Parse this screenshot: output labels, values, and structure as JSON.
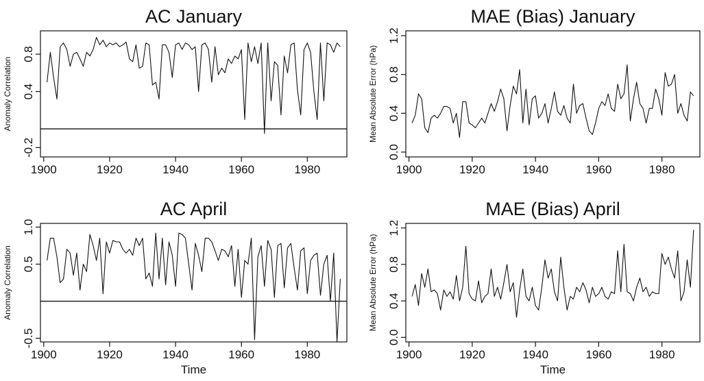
{
  "chart_data": [
    {
      "type": "line",
      "title": "AC January",
      "xlabel": "",
      "ylabel": "Anomaly Correlation",
      "xlim": [
        1899,
        1992
      ],
      "ylim": [
        -0.3,
        1.05
      ],
      "xticks": [
        1900,
        1920,
        1940,
        1960,
        1980
      ],
      "yticks": [
        -0.2,
        0.4,
        0.8
      ],
      "hline": 0.0,
      "series": [
        {
          "x": [
            1901,
            1902,
            1903,
            1904,
            1905,
            1906,
            1907,
            1908,
            1909,
            1910,
            1911,
            1912,
            1913,
            1914,
            1915,
            1916,
            1917,
            1918,
            1919,
            1920,
            1921,
            1922,
            1923,
            1924,
            1925,
            1926,
            1927,
            1928,
            1929,
            1930,
            1931,
            1932,
            1933,
            1934,
            1935,
            1936,
            1937,
            1938,
            1939,
            1940,
            1941,
            1942,
            1943,
            1944,
            1945,
            1946,
            1947,
            1948,
            1949,
            1950,
            1951,
            1952,
            1953,
            1954,
            1955,
            1956,
            1957,
            1958,
            1959,
            1960,
            1961,
            1962,
            1963,
            1964,
            1965,
            1966,
            1967,
            1968,
            1969,
            1970,
            1971,
            1972,
            1973,
            1974,
            1975,
            1976,
            1977,
            1978,
            1979,
            1980,
            1981,
            1982,
            1983,
            1984,
            1985,
            1986,
            1987,
            1988,
            1989,
            1990
          ],
          "values": [
            0.5,
            0.82,
            0.55,
            0.32,
            0.88,
            0.92,
            0.85,
            0.67,
            0.8,
            0.82,
            0.75,
            0.67,
            0.82,
            0.78,
            0.85,
            0.98,
            0.9,
            0.95,
            0.88,
            0.92,
            0.9,
            0.92,
            0.88,
            0.9,
            0.93,
            0.75,
            0.72,
            0.9,
            0.65,
            0.67,
            0.92,
            0.9,
            0.47,
            0.5,
            0.32,
            0.9,
            0.9,
            0.82,
            0.55,
            0.9,
            0.92,
            0.85,
            0.92,
            0.9,
            0.85,
            0.88,
            0.4,
            0.9,
            0.92,
            0.85,
            0.5,
            0.88,
            0.58,
            0.65,
            0.6,
            0.75,
            0.7,
            0.78,
            0.75,
            0.85,
            0.1,
            0.92,
            0.72,
            0.88,
            0.7,
            0.92,
            -0.05,
            0.92,
            0.3,
            0.72,
            0.68,
            0.15,
            0.78,
            0.6,
            0.9,
            0.92,
            0.42,
            0.15,
            0.85,
            0.92,
            0.82,
            0.4,
            0.1,
            0.92,
            0.3,
            0.92,
            0.9,
            0.82,
            0.92,
            0.88
          ]
        }
      ]
    },
    {
      "type": "line",
      "title": "MAE (Bias) January",
      "xlabel": "",
      "ylabel": "Mean Absolute Error (hPa)",
      "xlim": [
        1899,
        1992
      ],
      "ylim": [
        -0.05,
        1.25
      ],
      "xticks": [
        1900,
        1920,
        1940,
        1960,
        1980
      ],
      "yticks": [
        0.0,
        0.4,
        0.8,
        1.2
      ],
      "series": [
        {
          "x": [
            1901,
            1902,
            1903,
            1904,
            1905,
            1906,
            1907,
            1908,
            1909,
            1910,
            1911,
            1912,
            1913,
            1914,
            1915,
            1916,
            1917,
            1918,
            1919,
            1920,
            1921,
            1922,
            1923,
            1924,
            1925,
            1926,
            1927,
            1928,
            1929,
            1930,
            1931,
            1932,
            1933,
            1934,
            1935,
            1936,
            1937,
            1938,
            1939,
            1940,
            1941,
            1942,
            1943,
            1944,
            1945,
            1946,
            1947,
            1948,
            1949,
            1950,
            1951,
            1952,
            1953,
            1954,
            1955,
            1956,
            1957,
            1958,
            1959,
            1960,
            1961,
            1962,
            1963,
            1964,
            1965,
            1966,
            1967,
            1968,
            1969,
            1970,
            1971,
            1972,
            1973,
            1974,
            1975,
            1976,
            1977,
            1978,
            1979,
            1980,
            1981,
            1982,
            1983,
            1984,
            1985,
            1986,
            1987,
            1988,
            1989,
            1990
          ],
          "values": [
            0.3,
            0.38,
            0.6,
            0.55,
            0.25,
            0.2,
            0.35,
            0.38,
            0.35,
            0.4,
            0.47,
            0.47,
            0.45,
            0.3,
            0.4,
            0.15,
            0.52,
            0.52,
            0.3,
            0.28,
            0.25,
            0.3,
            0.35,
            0.3,
            0.4,
            0.5,
            0.42,
            0.52,
            0.65,
            0.55,
            0.22,
            0.48,
            0.68,
            0.6,
            0.85,
            0.3,
            0.65,
            0.28,
            0.55,
            0.58,
            0.35,
            0.4,
            0.5,
            0.3,
            0.45,
            0.62,
            0.42,
            0.38,
            0.48,
            0.35,
            0.3,
            0.7,
            0.4,
            0.48,
            0.5,
            0.35,
            0.22,
            0.18,
            0.3,
            0.45,
            0.52,
            0.48,
            0.6,
            0.45,
            0.42,
            0.7,
            0.55,
            0.6,
            0.9,
            0.32,
            0.55,
            0.72,
            0.5,
            0.45,
            0.3,
            0.45,
            0.45,
            0.65,
            0.55,
            0.38,
            0.82,
            0.68,
            0.7,
            0.8,
            0.4,
            0.5,
            0.38,
            0.32,
            0.62,
            0.58
          ]
        }
      ]
    },
    {
      "type": "line",
      "title": "AC April",
      "xlabel": "Time",
      "ylabel": "Anomaly Correlation",
      "xlim": [
        1899,
        1992
      ],
      "ylim": [
        -0.55,
        1.05
      ],
      "xticks": [
        1900,
        1920,
        1940,
        1960,
        1980
      ],
      "yticks": [
        -0.5,
        0.5,
        1.0
      ],
      "hline": 0.0,
      "series": [
        {
          "x": [
            1901,
            1902,
            1903,
            1904,
            1905,
            1906,
            1907,
            1908,
            1909,
            1910,
            1911,
            1912,
            1913,
            1914,
            1915,
            1916,
            1917,
            1918,
            1919,
            1920,
            1921,
            1922,
            1923,
            1924,
            1925,
            1926,
            1927,
            1928,
            1929,
            1930,
            1931,
            1932,
            1933,
            1934,
            1935,
            1936,
            1937,
            1938,
            1939,
            1940,
            1941,
            1942,
            1943,
            1944,
            1945,
            1946,
            1947,
            1948,
            1949,
            1950,
            1951,
            1952,
            1953,
            1954,
            1955,
            1956,
            1957,
            1958,
            1959,
            1960,
            1961,
            1962,
            1963,
            1964,
            1965,
            1966,
            1967,
            1968,
            1969,
            1970,
            1971,
            1972,
            1973,
            1974,
            1975,
            1976,
            1977,
            1978,
            1979,
            1980,
            1981,
            1982,
            1983,
            1984,
            1985,
            1986,
            1987,
            1988,
            1989,
            1990
          ],
          "values": [
            0.55,
            0.85,
            0.85,
            0.6,
            0.25,
            0.3,
            0.7,
            0.65,
            0.35,
            0.65,
            0.15,
            0.5,
            0.4,
            0.9,
            0.75,
            0.55,
            0.85,
            0.1,
            0.8,
            0.65,
            0.82,
            0.8,
            0.8,
            0.7,
            0.65,
            0.7,
            0.62,
            0.85,
            0.75,
            0.85,
            0.3,
            0.38,
            0.2,
            0.92,
            0.3,
            0.85,
            0.22,
            0.8,
            0.62,
            0.2,
            0.92,
            0.9,
            0.85,
            0.5,
            0.15,
            0.78,
            0.62,
            0.4,
            0.85,
            0.85,
            0.8,
            0.68,
            0.55,
            0.7,
            0.68,
            0.6,
            0.75,
            0.2,
            0.7,
            0.05,
            0.55,
            0.5,
            0.85,
            -0.52,
            0.6,
            0.75,
            0.2,
            0.82,
            0.7,
            0.05,
            0.75,
            0.78,
            0.18,
            0.72,
            0.78,
            0.45,
            0.15,
            0.68,
            0.72,
            0.1,
            0.55,
            0.62,
            0.65,
            0.08,
            0.5,
            0.62,
            0.0,
            0.65,
            -0.55,
            0.3
          ]
        }
      ]
    },
    {
      "type": "line",
      "title": "MAE (Bias) April",
      "xlabel": "Time",
      "ylabel": "Mean Absolute Error (hPa)",
      "xlim": [
        1899,
        1992
      ],
      "ylim": [
        -0.05,
        1.25
      ],
      "xticks": [
        1900,
        1920,
        1940,
        1960,
        1980
      ],
      "yticks": [
        0.0,
        0.4,
        0.8,
        1.2
      ],
      "series": [
        {
          "x": [
            1901,
            1902,
            1903,
            1904,
            1905,
            1906,
            1907,
            1908,
            1909,
            1910,
            1911,
            1912,
            1913,
            1914,
            1915,
            1916,
            1917,
            1918,
            1919,
            1920,
            1921,
            1922,
            1923,
            1924,
            1925,
            1926,
            1927,
            1928,
            1929,
            1930,
            1931,
            1932,
            1933,
            1934,
            1935,
            1936,
            1937,
            1938,
            1939,
            1940,
            1941,
            1942,
            1943,
            1944,
            1945,
            1946,
            1947,
            1948,
            1949,
            1950,
            1951,
            1952,
            1953,
            1954,
            1955,
            1956,
            1957,
            1958,
            1959,
            1960,
            1961,
            1962,
            1963,
            1964,
            1965,
            1966,
            1967,
            1968,
            1969,
            1970,
            1971,
            1972,
            1973,
            1974,
            1975,
            1976,
            1977,
            1978,
            1979,
            1980,
            1981,
            1982,
            1983,
            1984,
            1985,
            1986,
            1987,
            1988,
            1989,
            1990
          ],
          "values": [
            0.45,
            0.58,
            0.35,
            0.7,
            0.55,
            0.75,
            0.5,
            0.52,
            0.48,
            0.3,
            0.52,
            0.45,
            0.5,
            0.42,
            0.68,
            0.4,
            0.55,
            1.0,
            0.48,
            0.42,
            0.4,
            0.62,
            0.38,
            0.45,
            0.48,
            0.75,
            0.45,
            0.55,
            0.42,
            0.6,
            0.8,
            0.5,
            0.6,
            0.22,
            0.52,
            0.75,
            0.45,
            0.4,
            0.55,
            0.35,
            0.3,
            0.55,
            0.85,
            0.65,
            0.75,
            0.5,
            0.4,
            0.88,
            0.55,
            0.3,
            0.45,
            0.42,
            0.55,
            0.5,
            0.6,
            0.52,
            0.38,
            0.55,
            0.45,
            0.48,
            0.55,
            0.45,
            0.42,
            0.5,
            0.48,
            0.95,
            0.5,
            1.02,
            0.5,
            0.48,
            0.4,
            0.55,
            0.65,
            0.5,
            0.55,
            0.45,
            0.5,
            0.48,
            0.48,
            0.92,
            0.8,
            0.88,
            0.75,
            0.65,
            0.95,
            0.4,
            0.5,
            0.85,
            0.55,
            1.18
          ]
        }
      ]
    }
  ]
}
